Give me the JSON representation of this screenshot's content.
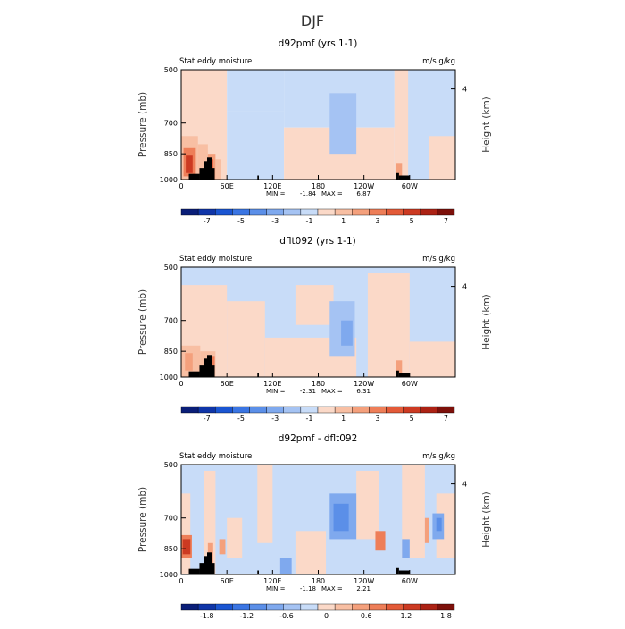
{
  "figure": {
    "title": "DJF",
    "stats_label_min": "MIN =",
    "stats_label_max": "MAX ="
  },
  "chart_data": [
    {
      "type": "heatmap",
      "title": "d92pmf (yrs 1-1)",
      "left_label": "Stat eddy moisture",
      "units_label": "m/s g/kg",
      "ylabel": "Pressure (mb)",
      "y2label": "Height (km)",
      "y_ticks": [
        "500",
        "700",
        "850",
        "1000"
      ],
      "y_tick_values": [
        500,
        700,
        850,
        1000
      ],
      "y2_ticks": [
        "4"
      ],
      "y2_tick_values": [
        4
      ],
      "x_ticks": [
        "0",
        "60E",
        "120E",
        "180",
        "120W",
        "60W"
      ],
      "x_tick_values": [
        0,
        60,
        120,
        180,
        240,
        300
      ],
      "xlim": [
        0,
        360
      ],
      "ylim": [
        1000,
        500
      ],
      "min": "-1.84",
      "max": "6.87",
      "colorbar_labels": [
        "-7",
        "-5",
        "-3",
        "-1",
        "1",
        "3",
        "5",
        "7"
      ],
      "colorbar_levels": [
        -8,
        -7,
        -6,
        -5,
        -4,
        -3,
        -2,
        -1,
        0,
        1,
        2,
        3,
        4,
        5,
        6,
        7,
        8
      ],
      "colorbar_colors": [
        "#0a1e78",
        "#0f35a8",
        "#1a55d2",
        "#3a75e3",
        "#5b8fe8",
        "#7fa9ee",
        "#a5c3f3",
        "#c8dcf8",
        "#fbd9c8",
        "#f8bfa3",
        "#f4a07c",
        "#ee7e58",
        "#e35a38",
        "#cc3a22",
        "#ac2214",
        "#7d100a"
      ],
      "regions": [
        {
          "x0": 0,
          "x1": 60,
          "p0": 1000,
          "p1": 500,
          "v": 0.5
        },
        {
          "x0": 60,
          "x1": 135,
          "p0": 650,
          "p1": 500,
          "v": -0.5
        },
        {
          "x0": 60,
          "x1": 135,
          "p0": 1000,
          "p1": 650,
          "v": -0.5
        },
        {
          "x0": 135,
          "x1": 280,
          "p0": 720,
          "p1": 500,
          "v": -0.5
        },
        {
          "x0": 135,
          "x1": 280,
          "p0": 1000,
          "p1": 720,
          "v": 0.5
        },
        {
          "x0": 280,
          "x1": 360,
          "p0": 1000,
          "p1": 500,
          "v": -0.5
        },
        {
          "x0": 280,
          "x1": 298,
          "p0": 1000,
          "p1": 500,
          "v": 0.5
        },
        {
          "x0": 325,
          "x1": 360,
          "p0": 1000,
          "p1": 760,
          "v": 0.5
        },
        {
          "x0": 195,
          "x1": 230,
          "p0": 850,
          "p1": 580,
          "v": -1.5
        },
        {
          "x0": 200,
          "x1": 225,
          "p0": 800,
          "p1": 640,
          "v": -1.8
        },
        {
          "x0": 0,
          "x1": 22,
          "p0": 1000,
          "p1": 760,
          "v": 1.5
        },
        {
          "x0": 3,
          "x1": 18,
          "p0": 980,
          "p1": 820,
          "v": 3.5
        },
        {
          "x0": 6,
          "x1": 15,
          "p0": 960,
          "p1": 860,
          "v": 5.5
        },
        {
          "x0": 22,
          "x1": 35,
          "p0": 1000,
          "p1": 800,
          "v": 1.5
        },
        {
          "x0": 35,
          "x1": 45,
          "p0": 1000,
          "p1": 850,
          "v": 2.5
        },
        {
          "x0": 36,
          "x1": 42,
          "p0": 980,
          "p1": 880,
          "v": 4.5
        },
        {
          "x0": 45,
          "x1": 52,
          "p0": 1000,
          "p1": 880,
          "v": 1.5
        },
        {
          "x0": 282,
          "x1": 290,
          "p0": 1000,
          "p1": 900,
          "v": 2.5
        }
      ]
    },
    {
      "type": "heatmap",
      "title": "dflt092 (yrs 1-1)",
      "left_label": "Stat eddy moisture",
      "units_label": "m/s g/kg",
      "ylabel": "Pressure (mb)",
      "y2label": "Height (km)",
      "y_ticks": [
        "500",
        "700",
        "850",
        "1000"
      ],
      "y_tick_values": [
        500,
        700,
        850,
        1000
      ],
      "y2_ticks": [
        "4"
      ],
      "y2_tick_values": [
        4
      ],
      "x_ticks": [
        "0",
        "60E",
        "120E",
        "180",
        "120W",
        "60W"
      ],
      "x_tick_values": [
        0,
        60,
        120,
        180,
        240,
        300
      ],
      "xlim": [
        0,
        360
      ],
      "ylim": [
        1000,
        500
      ],
      "min": "-2.31",
      "max": "6.31",
      "colorbar_labels": [
        "-7",
        "-5",
        "-3",
        "-1",
        "1",
        "3",
        "5",
        "7"
      ],
      "colorbar_levels": [
        -8,
        -7,
        -6,
        -5,
        -4,
        -3,
        -2,
        -1,
        0,
        1,
        2,
        3,
        4,
        5,
        6,
        7,
        8
      ],
      "colorbar_colors": [
        "#0a1e78",
        "#0f35a8",
        "#1a55d2",
        "#3a75e3",
        "#5b8fe8",
        "#7fa9ee",
        "#a5c3f3",
        "#c8dcf8",
        "#fbd9c8",
        "#f8bfa3",
        "#f4a07c",
        "#ee7e58",
        "#e35a38",
        "#cc3a22",
        "#ac2214",
        "#7d100a"
      ],
      "regions": [
        {
          "x0": 0,
          "x1": 360,
          "p0": 1000,
          "p1": 500,
          "v": -0.5
        },
        {
          "x0": 0,
          "x1": 60,
          "p0": 1000,
          "p1": 560,
          "v": 0.5
        },
        {
          "x0": 60,
          "x1": 110,
          "p0": 1000,
          "p1": 620,
          "v": 0.5
        },
        {
          "x0": 110,
          "x1": 230,
          "p0": 1000,
          "p1": 780,
          "v": 0.5
        },
        {
          "x0": 150,
          "x1": 200,
          "p0": 720,
          "p1": 560,
          "v": 0.5
        },
        {
          "x0": 245,
          "x1": 300,
          "p0": 1000,
          "p1": 520,
          "v": 0.5
        },
        {
          "x0": 300,
          "x1": 360,
          "p0": 1000,
          "p1": 800,
          "v": 0.5
        },
        {
          "x0": 195,
          "x1": 228,
          "p0": 880,
          "p1": 620,
          "v": -1.5
        },
        {
          "x0": 210,
          "x1": 225,
          "p0": 820,
          "p1": 700,
          "v": -2.2
        },
        {
          "x0": 0,
          "x1": 25,
          "p0": 1000,
          "p1": 820,
          "v": 1.5
        },
        {
          "x0": 5,
          "x1": 15,
          "p0": 960,
          "p1": 860,
          "v": 2.5
        },
        {
          "x0": 25,
          "x1": 45,
          "p0": 1000,
          "p1": 850,
          "v": 1.5
        },
        {
          "x0": 35,
          "x1": 44,
          "p0": 980,
          "p1": 880,
          "v": 3.5
        },
        {
          "x0": 282,
          "x1": 290,
          "p0": 1000,
          "p1": 900,
          "v": 2.5
        }
      ]
    },
    {
      "type": "heatmap",
      "title": "d92pmf - dflt092",
      "left_label": "Stat eddy moisture",
      "units_label": "m/s g/kg",
      "ylabel": "Pressure (mb)",
      "y2label": "Height (km)",
      "y_ticks": [
        "500",
        "700",
        "850",
        "1000"
      ],
      "y_tick_values": [
        500,
        700,
        850,
        1000
      ],
      "y2_ticks": [
        "4"
      ],
      "y2_tick_values": [
        4
      ],
      "x_ticks": [
        "0",
        "60E",
        "120E",
        "180",
        "120W",
        "60W"
      ],
      "x_tick_values": [
        0,
        60,
        120,
        180,
        240,
        300
      ],
      "xlim": [
        0,
        360
      ],
      "ylim": [
        1000,
        500
      ],
      "min": "-1.18",
      "max": "2.21",
      "colorbar_labels": [
        "-1.8",
        "-1.2",
        "-0.6",
        "0",
        "0.6",
        "1.2",
        "1.8"
      ],
      "colorbar_levels": [
        -2.4,
        -2.1,
        -1.8,
        -1.5,
        -1.2,
        -0.9,
        -0.6,
        -0.3,
        0,
        0.3,
        0.6,
        0.9,
        1.2,
        1.5,
        1.8,
        2.1,
        2.4
      ],
      "colorbar_colors": [
        "#0a1e78",
        "#0f35a8",
        "#1a55d2",
        "#3a75e3",
        "#5b8fe8",
        "#7fa9ee",
        "#a5c3f3",
        "#c8dcf8",
        "#fbd9c8",
        "#f8bfa3",
        "#f4a07c",
        "#ee7e58",
        "#e35a38",
        "#cc3a22",
        "#ac2214",
        "#7d100a"
      ],
      "regions": [
        {
          "x0": 0,
          "x1": 360,
          "p0": 1000,
          "p1": 500,
          "v": -0.15
        },
        {
          "x0": 0,
          "x1": 12,
          "p0": 1000,
          "p1": 600,
          "v": 0.15
        },
        {
          "x0": 30,
          "x1": 45,
          "p0": 1000,
          "p1": 520,
          "v": 0.15
        },
        {
          "x0": 60,
          "x1": 80,
          "p0": 900,
          "p1": 700,
          "v": 0.15
        },
        {
          "x0": 100,
          "x1": 120,
          "p0": 820,
          "p1": 500,
          "v": 0.15
        },
        {
          "x0": 150,
          "x1": 190,
          "p0": 1000,
          "p1": 760,
          "v": 0.15
        },
        {
          "x0": 230,
          "x1": 260,
          "p0": 800,
          "p1": 520,
          "v": 0.15
        },
        {
          "x0": 290,
          "x1": 320,
          "p0": 900,
          "p1": 500,
          "v": 0.15
        },
        {
          "x0": 335,
          "x1": 360,
          "p0": 900,
          "p1": 600,
          "v": 0.15
        },
        {
          "x0": 0,
          "x1": 14,
          "p0": 900,
          "p1": 780,
          "v": 1.0
        },
        {
          "x0": 2,
          "x1": 12,
          "p0": 880,
          "p1": 800,
          "v": 1.7
        },
        {
          "x0": 35,
          "x1": 42,
          "p0": 960,
          "p1": 820,
          "v": 0.7
        },
        {
          "x0": 50,
          "x1": 58,
          "p0": 880,
          "p1": 800,
          "v": 0.7
        },
        {
          "x0": 255,
          "x1": 268,
          "p0": 860,
          "p1": 760,
          "v": 1.0
        },
        {
          "x0": 320,
          "x1": 326,
          "p0": 820,
          "p1": 700,
          "v": 0.7
        },
        {
          "x0": 195,
          "x1": 230,
          "p0": 800,
          "p1": 600,
          "v": -0.8
        },
        {
          "x0": 200,
          "x1": 220,
          "p0": 760,
          "p1": 640,
          "v": -1.1
        },
        {
          "x0": 130,
          "x1": 145,
          "p0": 1000,
          "p1": 900,
          "v": -0.8
        },
        {
          "x0": 330,
          "x1": 345,
          "p0": 800,
          "p1": 680,
          "v": -0.8
        },
        {
          "x0": 335,
          "x1": 342,
          "p0": 760,
          "p1": 700,
          "v": -1.1
        },
        {
          "x0": 290,
          "x1": 300,
          "p0": 900,
          "p1": 800,
          "v": -0.8
        }
      ]
    }
  ],
  "topography": {
    "color": "#000000",
    "blocks": [
      {
        "x0": 10,
        "x1": 24,
        "p": 965
      },
      {
        "x0": 24,
        "x1": 30,
        "p": 930
      },
      {
        "x0": 30,
        "x1": 34,
        "p": 890
      },
      {
        "x0": 34,
        "x1": 40,
        "p": 870
      },
      {
        "x0": 40,
        "x1": 44,
        "p": 930
      },
      {
        "x0": 100,
        "x1": 102,
        "p": 975
      },
      {
        "x0": 282,
        "x1": 286,
        "p": 960
      },
      {
        "x0": 286,
        "x1": 300,
        "p": 975
      }
    ]
  }
}
